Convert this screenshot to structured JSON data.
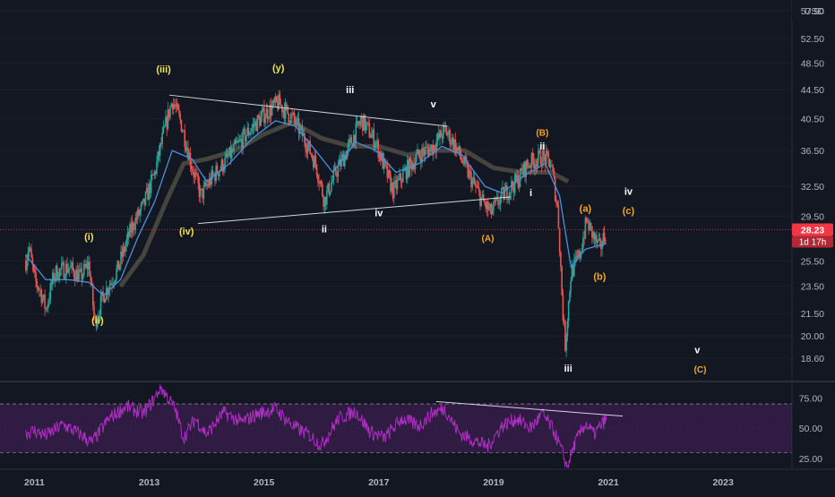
{
  "currency": "USD",
  "colors": {
    "background": "#131722",
    "up": "#26a69a",
    "down": "#ef5350",
    "ma_blue": "#4a90e2",
    "ma_gray": "#6f6a55",
    "trendline": "#d1d4dc",
    "rsi": "#b42ec8",
    "rsi_band": "#3b1f4f",
    "price_tag": "#f23645"
  },
  "chart_data": [
    {
      "type": "candlestick",
      "title": "",
      "y_scale": "log",
      "ylim": [
        17.3,
        59.5
      ],
      "xlim": [
        2010.4,
        2024.2
      ],
      "y_ticks": [
        "57.50",
        "52.50",
        "48.50",
        "44.50",
        "40.50",
        "36.50",
        "32.50",
        "29.50",
        "25.50",
        "23.50",
        "21.50",
        "20.00",
        "18.60"
      ],
      "last_price": "28.23",
      "countdown": "1d 17h",
      "price_path": [
        [
          2010.85,
          25.5
        ],
        [
          2010.9,
          26.8
        ],
        [
          2011.0,
          24.0
        ],
        [
          2011.1,
          23.2
        ],
        [
          2011.2,
          21.8
        ],
        [
          2011.35,
          24.5
        ],
        [
          2011.6,
          25.0
        ],
        [
          2011.8,
          24.2
        ],
        [
          2011.95,
          25.3
        ],
        [
          2012.05,
          20.8
        ],
        [
          2012.2,
          22.8
        ],
        [
          2012.45,
          24.8
        ],
        [
          2012.7,
          28.5
        ],
        [
          2012.9,
          30.5
        ],
        [
          2013.1,
          34.0
        ],
        [
          2013.25,
          38.5
        ],
        [
          2013.4,
          43.0
        ],
        [
          2013.55,
          40.0
        ],
        [
          2013.75,
          34.5
        ],
        [
          2013.9,
          31.5
        ],
        [
          2014.1,
          33.5
        ],
        [
          2014.3,
          35.0
        ],
        [
          2014.55,
          37.2
        ],
        [
          2014.75,
          39.0
        ],
        [
          2015.0,
          41.0
        ],
        [
          2015.25,
          42.6
        ],
        [
          2015.5,
          40.5
        ],
        [
          2015.7,
          38.0
        ],
        [
          2015.9,
          35.0
        ],
        [
          2016.05,
          31.0
        ],
        [
          2016.25,
          34.0
        ],
        [
          2016.45,
          36.5
        ],
        [
          2016.7,
          40.3
        ],
        [
          2016.95,
          37.5
        ],
        [
          2017.1,
          34.5
        ],
        [
          2017.25,
          32.0
        ],
        [
          2017.45,
          34.0
        ],
        [
          2017.7,
          36.0
        ],
        [
          2017.95,
          37.0
        ],
        [
          2018.15,
          39.0
        ],
        [
          2018.3,
          37.5
        ],
        [
          2018.55,
          34.0
        ],
        [
          2018.8,
          31.0
        ],
        [
          2018.95,
          29.8
        ],
        [
          2019.15,
          31.5
        ],
        [
          2019.4,
          33.0
        ],
        [
          2019.6,
          35.0
        ],
        [
          2019.85,
          35.8
        ],
        [
          2020.0,
          35.0
        ],
        [
          2020.12,
          30.0
        ],
        [
          2020.2,
          22.0
        ],
        [
          2020.25,
          19.4
        ],
        [
          2020.35,
          24.5
        ],
        [
          2020.5,
          26.0
        ],
        [
          2020.62,
          29.0
        ],
        [
          2020.75,
          27.5
        ],
        [
          2020.85,
          26.5
        ],
        [
          2020.97,
          28.23
        ]
      ],
      "ma_blue_path": [
        [
          2010.85,
          26.0
        ],
        [
          2011.2,
          24.0
        ],
        [
          2011.6,
          24.0
        ],
        [
          2011.95,
          23.8
        ],
        [
          2012.2,
          22.8
        ],
        [
          2012.5,
          24.0
        ],
        [
          2012.8,
          27.5
        ],
        [
          2013.1,
          31.0
        ],
        [
          2013.4,
          36.5
        ],
        [
          2013.75,
          35.5
        ],
        [
          2014.0,
          33.0
        ],
        [
          2014.4,
          35.0
        ],
        [
          2014.8,
          38.0
        ],
        [
          2015.2,
          40.2
        ],
        [
          2015.55,
          39.5
        ],
        [
          2015.9,
          36.5
        ],
        [
          2016.2,
          34.0
        ],
        [
          2016.6,
          37.5
        ],
        [
          2016.95,
          36.5
        ],
        [
          2017.3,
          34.0
        ],
        [
          2017.7,
          35.0
        ],
        [
          2018.1,
          37.0
        ],
        [
          2018.45,
          36.0
        ],
        [
          2018.85,
          32.5
        ],
        [
          2019.15,
          31.8
        ],
        [
          2019.5,
          33.5
        ],
        [
          2019.9,
          35.0
        ],
        [
          2020.15,
          31.5
        ],
        [
          2020.35,
          25.0
        ],
        [
          2020.6,
          26.5
        ],
        [
          2020.97,
          27.0
        ]
      ],
      "ma_gray_path": [
        [
          2012.5,
          23.5
        ],
        [
          2012.9,
          26.0
        ],
        [
          2013.3,
          31.0
        ],
        [
          2013.6,
          35.0
        ],
        [
          2014.0,
          35.5
        ],
        [
          2014.5,
          36.5
        ],
        [
          2015.0,
          38.5
        ],
        [
          2015.5,
          40.0
        ],
        [
          2016.0,
          38.0
        ],
        [
          2016.5,
          37.0
        ],
        [
          2017.0,
          37.0
        ],
        [
          2017.5,
          36.0
        ],
        [
          2018.0,
          36.5
        ],
        [
          2018.5,
          36.5
        ],
        [
          2019.0,
          34.5
        ],
        [
          2019.5,
          34.0
        ],
        [
          2020.0,
          34.0
        ],
        [
          2020.3,
          33.0
        ]
      ],
      "trendlines": [
        {
          "from": [
            2013.35,
            43.7
          ],
          "to": [
            2018.2,
            39.5
          ]
        },
        {
          "from": [
            2013.85,
            28.8
          ],
          "to": [
            2019.3,
            31.4
          ]
        }
      ],
      "wave_labels": [
        {
          "text": "(i)",
          "x": 2011.95,
          "y": 27.3,
          "style": "wave-y"
        },
        {
          "text": "(ii)",
          "x": 2012.1,
          "y": 20.8,
          "style": "wave-y"
        },
        {
          "text": "(iii)",
          "x": 2013.25,
          "y": 47.0,
          "style": "wave-y"
        },
        {
          "text": "(iv)",
          "x": 2013.65,
          "y": 27.8,
          "style": "wave-y"
        },
        {
          "text": "(y)",
          "x": 2015.25,
          "y": 47.2,
          "style": "wave-y"
        },
        {
          "text": "iii",
          "x": 2016.5,
          "y": 44.0,
          "style": "wave-w"
        },
        {
          "text": "v",
          "x": 2017.95,
          "y": 42.0,
          "style": "wave-w"
        },
        {
          "text": "ii",
          "x": 2016.05,
          "y": 28.0,
          "style": "wave-w"
        },
        {
          "text": "iv",
          "x": 2017.0,
          "y": 29.5,
          "style": "wave-w"
        },
        {
          "text": "(A)",
          "x": 2018.9,
          "y": 27.2,
          "style": "wave-o"
        },
        {
          "text": "(B)",
          "x": 2019.85,
          "y": 38.3,
          "style": "wave-o"
        },
        {
          "text": "ii",
          "x": 2019.85,
          "y": 36.6,
          "style": "wave-w"
        },
        {
          "text": "i",
          "x": 2019.65,
          "y": 31.5,
          "style": "wave-w"
        },
        {
          "text": "(a)",
          "x": 2020.6,
          "y": 29.9,
          "style": "wave-o2"
        },
        {
          "text": "(b)",
          "x": 2020.85,
          "y": 24.0,
          "style": "wave-o2"
        },
        {
          "text": "iii",
          "x": 2020.3,
          "y": 17.8,
          "style": "wave-w"
        },
        {
          "text": "iv",
          "x": 2021.35,
          "y": 31.6,
          "style": "wave-w"
        },
        {
          "text": "(c)",
          "x": 2021.35,
          "y": 29.7,
          "style": "wave-o2"
        },
        {
          "text": "v",
          "x": 2022.55,
          "y": 18.9,
          "style": "wave-w"
        },
        {
          "text": "(C)",
          "x": 2022.6,
          "y": 17.75,
          "style": "wave-o"
        }
      ]
    },
    {
      "type": "line",
      "title": "",
      "ylim": [
        17,
        87
      ],
      "y_ticks": [
        "75.00",
        "50.00",
        "25.00"
      ],
      "band": [
        30,
        70
      ],
      "rsi_path": [
        [
          2010.85,
          46
        ],
        [
          2011.0,
          48
        ],
        [
          2011.2,
          44
        ],
        [
          2011.5,
          53
        ],
        [
          2011.8,
          45
        ],
        [
          2012.0,
          38
        ],
        [
          2012.3,
          58
        ],
        [
          2012.6,
          68
        ],
        [
          2012.9,
          62
        ],
        [
          2013.1,
          75
        ],
        [
          2013.2,
          84
        ],
        [
          2013.45,
          66
        ],
        [
          2013.6,
          42
        ],
        [
          2013.8,
          58
        ],
        [
          2014.0,
          45
        ],
        [
          2014.3,
          63
        ],
        [
          2014.6,
          55
        ],
        [
          2014.9,
          62
        ],
        [
          2015.2,
          66
        ],
        [
          2015.5,
          52
        ],
        [
          2015.8,
          44
        ],
        [
          2016.0,
          36
        ],
        [
          2016.3,
          58
        ],
        [
          2016.6,
          64
        ],
        [
          2016.85,
          47
        ],
        [
          2017.1,
          42
        ],
        [
          2017.4,
          58
        ],
        [
          2017.7,
          52
        ],
        [
          2017.95,
          63
        ],
        [
          2018.15,
          66
        ],
        [
          2018.4,
          46
        ],
        [
          2018.7,
          39
        ],
        [
          2018.9,
          35
        ],
        [
          2019.15,
          52
        ],
        [
          2019.4,
          58
        ],
        [
          2019.65,
          50
        ],
        [
          2019.85,
          62
        ],
        [
          2020.05,
          48
        ],
        [
          2020.2,
          30
        ],
        [
          2020.28,
          18
        ],
        [
          2020.42,
          38
        ],
        [
          2020.6,
          54
        ],
        [
          2020.75,
          45
        ],
        [
          2020.97,
          58
        ]
      ],
      "trendline": {
        "from": [
          2018.0,
          72
        ],
        "to": [
          2021.25,
          60
        ]
      }
    }
  ],
  "time_axis": {
    "ticks": [
      {
        "label": "2011",
        "x": 2011
      },
      {
        "label": "2013",
        "x": 2013
      },
      {
        "label": "2015",
        "x": 2015
      },
      {
        "label": "2017",
        "x": 2017
      },
      {
        "label": "2019",
        "x": 2019
      },
      {
        "label": "2021",
        "x": 2021
      },
      {
        "label": "2023",
        "x": 2023
      }
    ]
  }
}
